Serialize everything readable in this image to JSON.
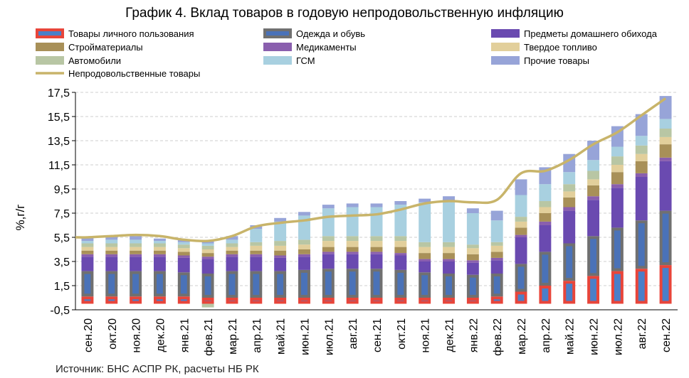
{
  "title": "График 4. Вклад товаров в годовую непродовольственную инфляцию",
  "source": "Источник: БНС АСПР РК, расчеты НБ РК",
  "chart_data": {
    "type": "bar",
    "title": "График 4. Вклад товаров в годовую непродовольственную инфляцию",
    "ylabel": "%,г/г",
    "xlabel": "",
    "ylim": [
      -0.5,
      17.5
    ],
    "yticks": [
      "-0,5",
      "1,5",
      "3,5",
      "5,5",
      "7,5",
      "9,5",
      "11,5",
      "13,5",
      "15,5",
      "17,5"
    ],
    "grid": true,
    "legend_position": "top",
    "categories": [
      "сен.20",
      "окт.20",
      "ноя.20",
      "дек.20",
      "янв.21",
      "фев.21",
      "мар.21",
      "апр.21",
      "май.21",
      "июн.21",
      "июл.21",
      "авг.21",
      "сен.21",
      "окт.21",
      "ноя.21",
      "дек.21",
      "янв.22",
      "фев.22",
      "мар.22",
      "апр.22",
      "май.22",
      "июн.22",
      "июл.22",
      "авг.22",
      "сен.22"
    ],
    "series": [
      {
        "name": "Товары личного пользования",
        "color": "#4a7fc9",
        "border": "#e8453a",
        "values": [
          0.6,
          0.6,
          0.6,
          0.6,
          0.6,
          0.5,
          0.5,
          0.5,
          0.5,
          0.5,
          0.5,
          0.5,
          0.5,
          0.5,
          0.5,
          0.5,
          0.5,
          0.6,
          1.0,
          1.5,
          1.9,
          2.3,
          2.7,
          2.9,
          3.2
        ]
      },
      {
        "name": "Одежда и обувь",
        "color": "#4a72b8",
        "border": "#707070",
        "values": [
          2.1,
          2.1,
          2.1,
          2.1,
          2.0,
          2.0,
          2.2,
          2.2,
          2.2,
          2.3,
          2.4,
          2.4,
          2.4,
          2.3,
          2.1,
          2.0,
          1.9,
          1.9,
          2.3,
          2.8,
          3.1,
          3.3,
          3.6,
          4.0,
          4.5
        ]
      },
      {
        "name": "Предметы домашнего обихода",
        "color": "#6a4ab0",
        "values": [
          1.2,
          1.2,
          1.2,
          1.2,
          1.2,
          1.2,
          1.2,
          1.2,
          1.1,
          1.1,
          1.2,
          1.2,
          1.2,
          1.2,
          0.9,
          1.0,
          1.0,
          1.1,
          2.2,
          2.2,
          2.7,
          3.0,
          3.3,
          3.6,
          4.1
        ]
      },
      {
        "name": "Медикаменты",
        "color": "#8a5fae",
        "values": [
          0.2,
          0.2,
          0.2,
          0.2,
          0.2,
          0.2,
          0.2,
          0.2,
          0.2,
          0.2,
          0.2,
          0.2,
          0.2,
          0.2,
          0.2,
          0.2,
          0.2,
          0.2,
          0.2,
          0.3,
          0.3,
          0.3,
          0.3,
          0.3,
          0.3
        ]
      },
      {
        "name": "Стройматериалы",
        "color": "#a89058",
        "values": [
          0.3,
          0.3,
          0.3,
          0.3,
          0.3,
          0.3,
          0.3,
          0.3,
          0.4,
          0.4,
          0.4,
          0.4,
          0.4,
          0.5,
          0.5,
          0.5,
          0.5,
          0.5,
          0.6,
          0.7,
          0.8,
          0.9,
          1.0,
          1.0,
          1.1
        ]
      },
      {
        "name": "Твердое топливо",
        "color": "#e2cf9b",
        "values": [
          0.3,
          0.3,
          0.3,
          0.3,
          0.3,
          0.3,
          0.3,
          0.4,
          0.4,
          0.4,
          0.5,
          0.5,
          0.5,
          0.5,
          0.5,
          0.5,
          0.5,
          0.5,
          0.5,
          0.5,
          0.5,
          0.5,
          0.6,
          0.6,
          0.6
        ]
      },
      {
        "name": "Автомобили",
        "color": "#b8c6a4",
        "values": [
          0.3,
          0.3,
          0.3,
          0.3,
          0.3,
          0.3,
          0.3,
          0.3,
          0.4,
          0.4,
          0.4,
          0.4,
          0.4,
          0.4,
          0.4,
          0.4,
          0.3,
          0.3,
          0.4,
          0.5,
          0.6,
          0.7,
          0.7,
          0.7,
          0.7
        ]
      },
      {
        "name": "ГСМ",
        "color": "#a8d0e0",
        "values": [
          0.2,
          0.3,
          0.3,
          0.2,
          0.2,
          0.2,
          0.3,
          1.1,
          1.6,
          2.0,
          2.3,
          2.4,
          2.4,
          2.6,
          3.3,
          3.4,
          2.6,
          1.8,
          1.8,
          1.4,
          1.0,
          0.9,
          0.8,
          0.8,
          0.8
        ]
      },
      {
        "name": "Прочие товары",
        "color": "#97a4d8",
        "values": [
          0.3,
          0.3,
          0.3,
          0.2,
          0.2,
          0.2,
          0.3,
          0.3,
          0.3,
          0.3,
          0.3,
          0.3,
          0.3,
          0.3,
          0.3,
          0.4,
          0.4,
          0.8,
          1.3,
          1.4,
          1.5,
          1.6,
          1.7,
          1.8,
          1.9
        ]
      }
    ],
    "negative_series": [
      {
        "name": "Автомобили",
        "color": "#b8c6a4",
        "values": [
          0,
          0,
          0,
          0,
          0,
          -0.3,
          0,
          0,
          0,
          0,
          0,
          0,
          0,
          0,
          0,
          0,
          0,
          0,
          0,
          0,
          0,
          0,
          0,
          0,
          0
        ]
      }
    ],
    "line": {
      "name": "Непродовольственные товары",
      "color": "#c8b46a",
      "values": [
        5.5,
        5.6,
        5.7,
        5.6,
        5.3,
        5.2,
        5.6,
        6.4,
        6.7,
        6.9,
        7.2,
        7.3,
        7.4,
        7.8,
        8.3,
        8.5,
        8.4,
        8.6,
        10.8,
        11.0,
        11.9,
        13.2,
        14.2,
        15.6,
        17.0
      ]
    },
    "legend": [
      {
        "name": "Товары личного пользования",
        "kind": "swatch-bordered",
        "color": "#4a7fc9",
        "border": "#e8453a"
      },
      {
        "name": "Одежда и обувь",
        "kind": "swatch-bordered",
        "color": "#4a72b8",
        "border": "#707070"
      },
      {
        "name": "Предметы домашнего обихода",
        "kind": "swatch",
        "color": "#6a4ab0"
      },
      {
        "name": "Стройматериалы",
        "kind": "swatch",
        "color": "#a89058"
      },
      {
        "name": "Медикаменты",
        "kind": "swatch",
        "color": "#8a5fae"
      },
      {
        "name": "Твердое топливо",
        "kind": "swatch",
        "color": "#e2cf9b"
      },
      {
        "name": "Автомобили",
        "kind": "swatch",
        "color": "#b8c6a4"
      },
      {
        "name": "ГСМ",
        "kind": "swatch",
        "color": "#a8d0e0"
      },
      {
        "name": "Прочие товары",
        "kind": "swatch",
        "color": "#97a4d8"
      },
      {
        "name": "Непродовольственные товары",
        "kind": "line",
        "color": "#c8b46a"
      }
    ]
  }
}
